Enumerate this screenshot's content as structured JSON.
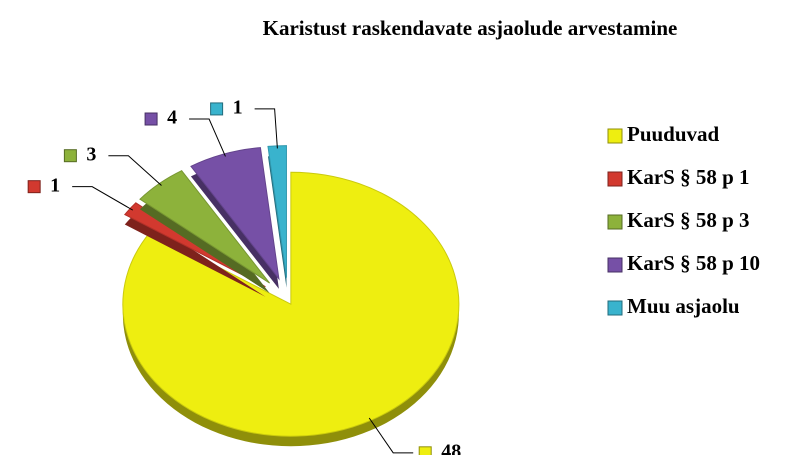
{
  "chart_data": {
    "type": "pie",
    "title": "Karistust raskendavate asjaolude arvestamine",
    "categories": [
      "Puuduvad",
      "KarS § 58 p 1",
      "KarS § 58 p 3",
      "KarS § 58 p 10",
      "Muu asjaolu"
    ],
    "values": [
      48,
      1,
      3,
      4,
      1
    ],
    "colors": [
      "#eeee10",
      "#d2392f",
      "#8db23b",
      "#7650a6",
      "#39b3cd"
    ],
    "legend": "right"
  }
}
